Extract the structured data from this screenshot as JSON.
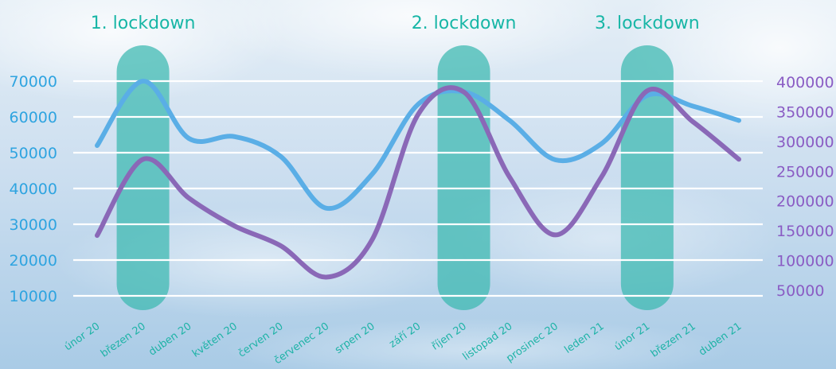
{
  "colors": {
    "left_series": "#5aaee6",
    "right_series": "#8a68b7",
    "lockdown_band": "#3ab8b0",
    "lockdown_text": "#17b6a6",
    "grid": "#ffffff",
    "left_ticks": "#2fa4e0",
    "right_ticks": "#8a5cc4"
  },
  "chart_data": {
    "type": "line",
    "title": "",
    "xlabel": "",
    "ylabel": "",
    "categories": [
      "únor 20",
      "březen 20",
      "duben 20",
      "květen 20",
      "červen 20",
      "červenec 20",
      "srpen 20",
      "září 20",
      "říjen 20",
      "listopad 20",
      "prosinec 20",
      "leden 21",
      "únor 21",
      "březen 21",
      "duben 21"
    ],
    "left_axis": {
      "ticks": [
        10000,
        20000,
        30000,
        40000,
        50000,
        60000,
        70000
      ],
      "ylim": [
        10000,
        70000
      ]
    },
    "right_axis": {
      "ticks": [
        50000,
        100000,
        150000,
        200000,
        250000,
        300000,
        350000,
        400000
      ],
      "ylim": [
        50000,
        400000
      ]
    },
    "series": [
      {
        "axis": "left",
        "color": "#5aaee6",
        "values": [
          52000,
          70000,
          54000,
          54500,
          49000,
          34500,
          44000,
          63500,
          67000,
          59000,
          48000,
          52500,
          66000,
          63000,
          59000
        ]
      },
      {
        "axis": "right",
        "color": "#8a68b7",
        "values": [
          142000,
          270000,
          205000,
          158000,
          125000,
          72000,
          135000,
          345000,
          383000,
          240000,
          143000,
          240000,
          385000,
          333000,
          270000
        ]
      }
    ],
    "annotations": [
      {
        "label": "1. lockdown",
        "category": "březen 20"
      },
      {
        "label": "2. lockdown",
        "category": "říjen 20"
      },
      {
        "label": "3. lockdown",
        "category": "únor 21"
      }
    ],
    "grid": true
  }
}
